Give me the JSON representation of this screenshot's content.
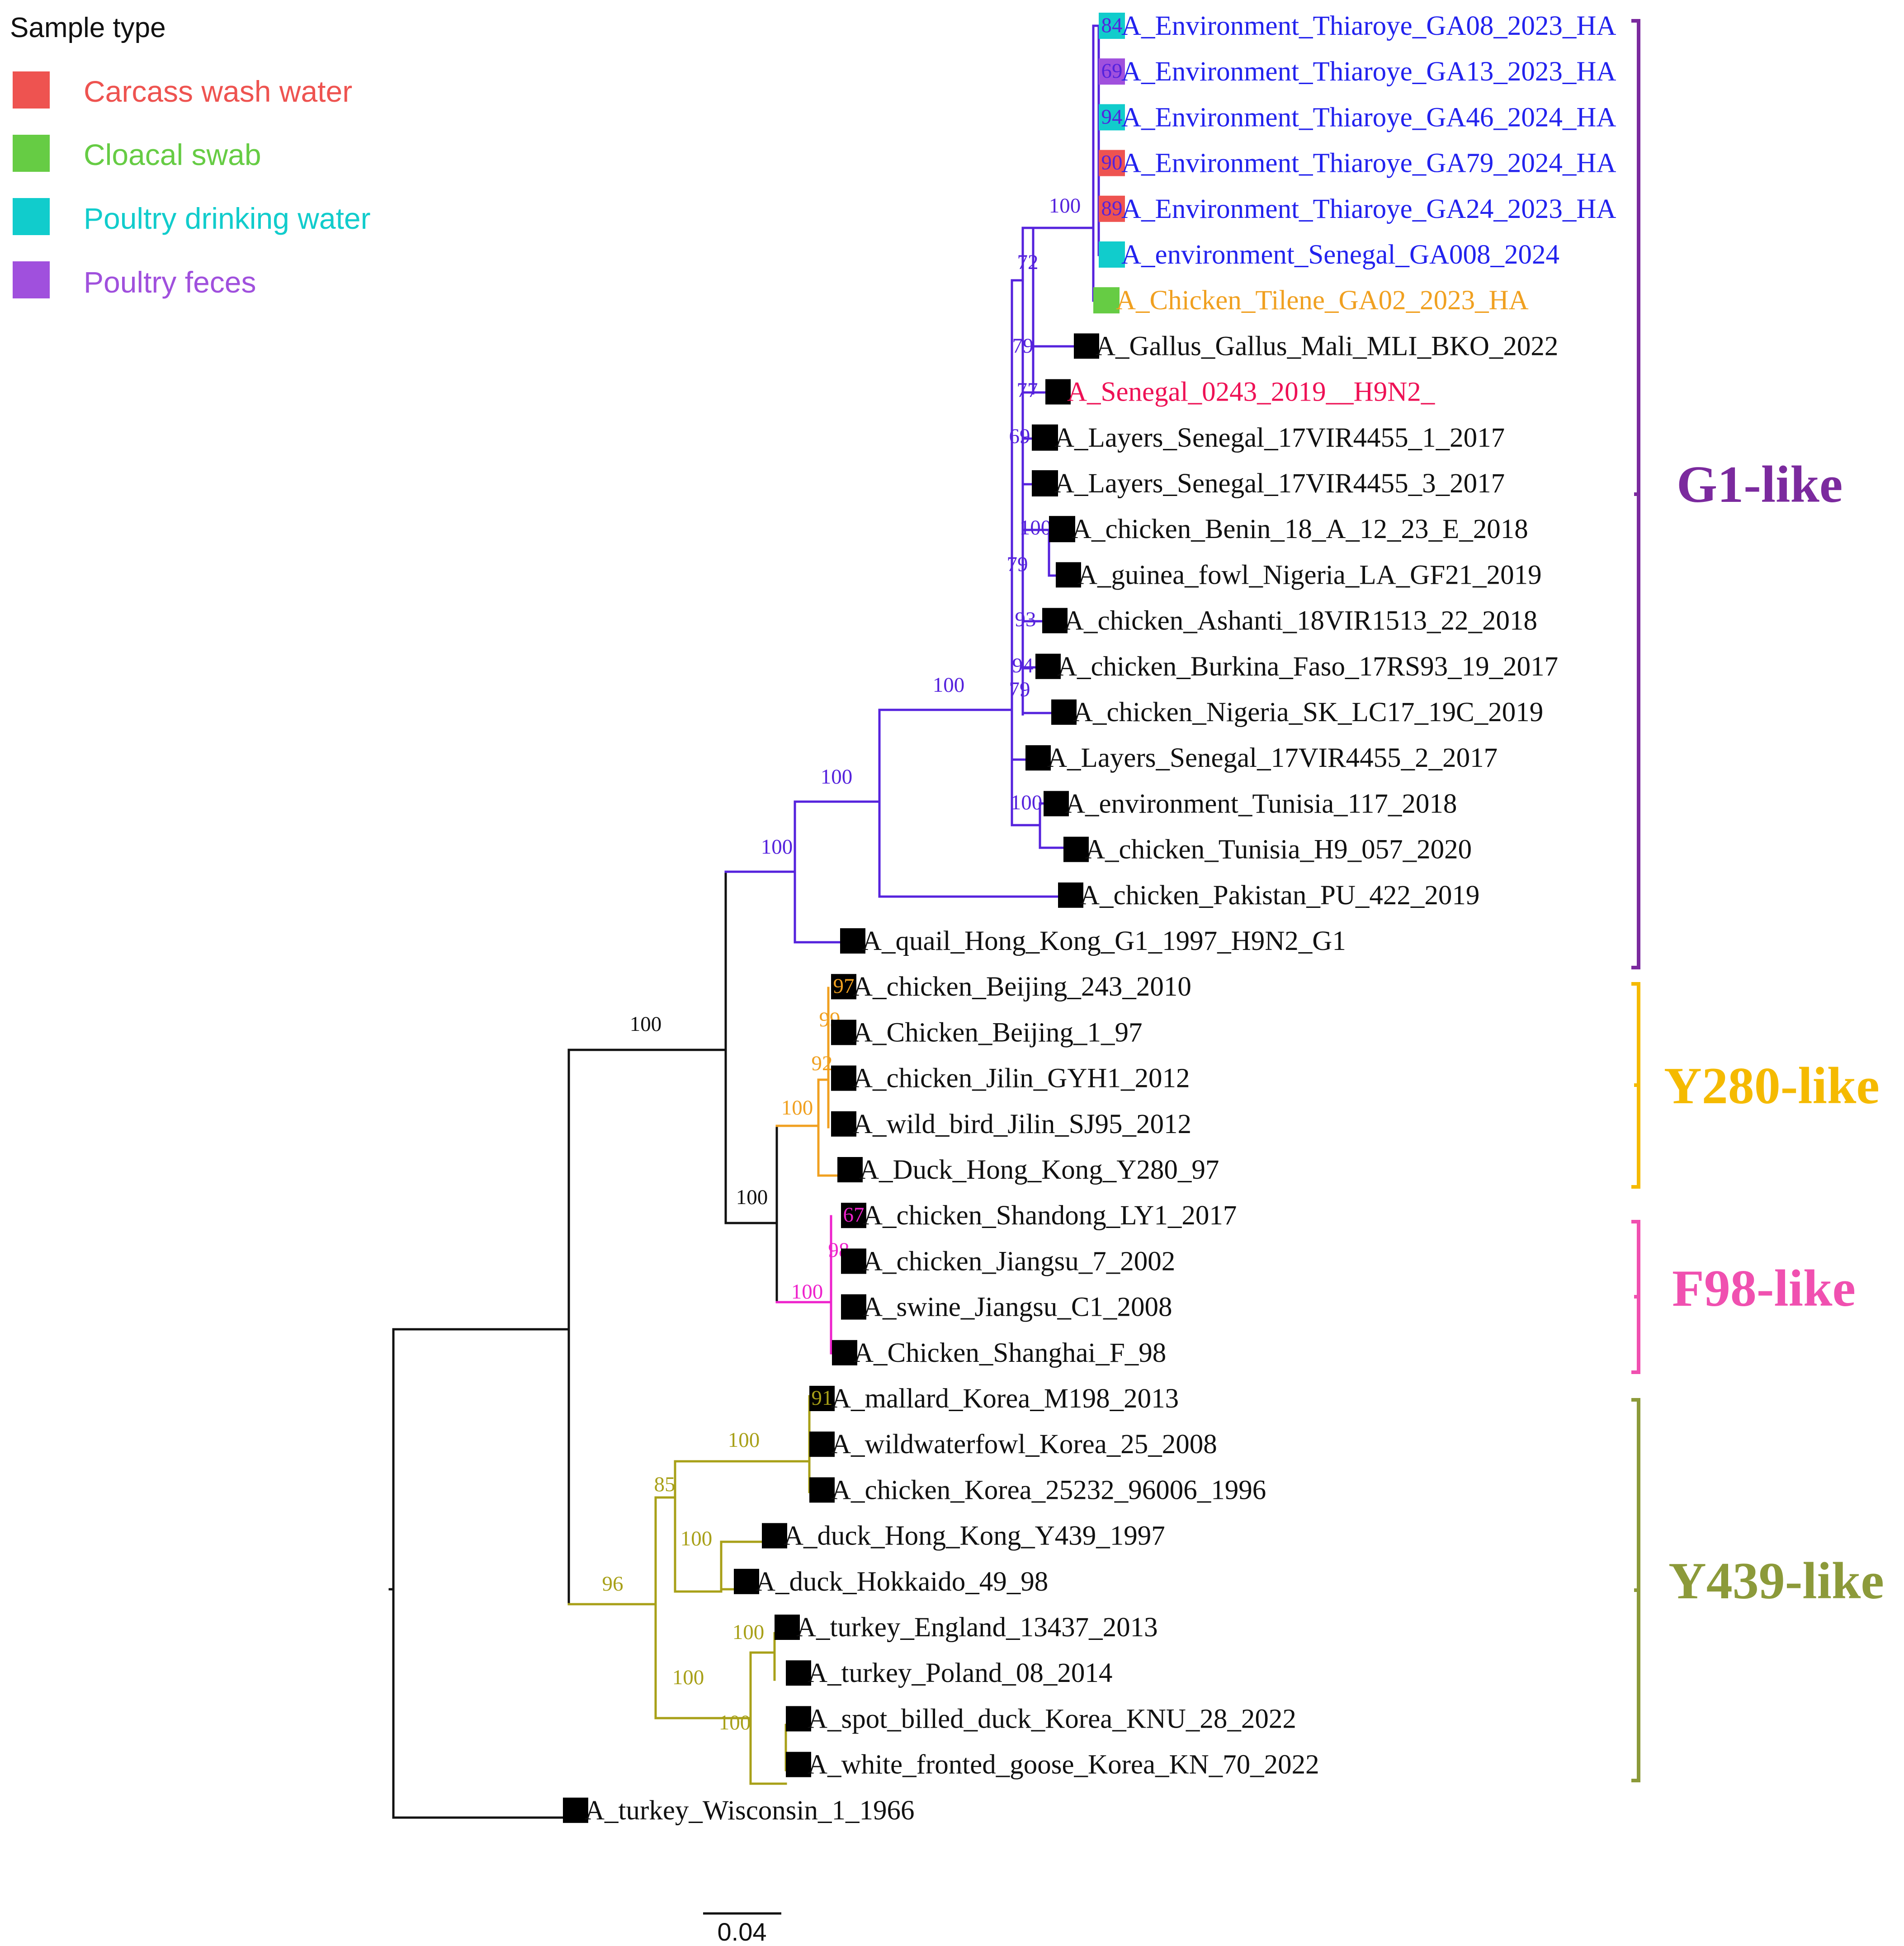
{
  "legend": {
    "title": "Sample type",
    "items": [
      {
        "label": "Carcass wash water",
        "color": "#EE5350"
      },
      {
        "label": "Cloacal swab",
        "color": "#66CC44"
      },
      {
        "label": "Poultry drinking water",
        "color": "#11CCCC"
      },
      {
        "label": "Poultry feces",
        "color": "#A050DD"
      }
    ]
  },
  "colors": {
    "root": "#111111",
    "g1": "#5522DD",
    "y280": "#F0A020",
    "f98": "#EE22CC",
    "y439": "#A8A018",
    "tip_blue": "#2222EE",
    "tip_orange": "#F0A020",
    "tip_red": "#EE1155",
    "tip_black": "#111111",
    "marker": "#000000"
  },
  "taxa": [
    {
      "label": "A_Environment_Thiaroye_GA08_2023_HA",
      "color": "tip_blue",
      "marker": "cyan",
      "support": "84",
      "support_color": "g1"
    },
    {
      "label": "A_Environment_Thiaroye_GA13_2023_HA",
      "color": "tip_blue",
      "marker": "purple",
      "support": "69",
      "support_color": "g1"
    },
    {
      "label": "A_Environment_Thiaroye_GA46_2024_HA",
      "color": "tip_blue",
      "marker": "cyan",
      "support": "94",
      "support_color": "g1"
    },
    {
      "label": "A_Environment_Thiaroye_GA79_2024_HA",
      "color": "tip_blue",
      "marker": "red",
      "support": "90",
      "support_color": "g1"
    },
    {
      "label": "A_Environment_Thiaroye_GA24_2023_HA",
      "color": "tip_blue",
      "marker": "red",
      "support": "89",
      "support_color": "g1"
    },
    {
      "label": "A_environment_Senegal_GA008_2024",
      "color": "tip_blue",
      "marker": "cyan",
      "support": "",
      "support_color": "g1"
    },
    {
      "label": "A_Chicken_Tilene_GA02_2023_HA",
      "color": "tip_orange",
      "marker": "green",
      "support": "",
      "support_color": "g1"
    },
    {
      "label": "A_Gallus_Gallus_Mali_MLI_BKO_2022",
      "color": "tip_black",
      "marker": "black",
      "support": "",
      "support_color": "g1"
    },
    {
      "label": "A_Senegal_0243_2019__H9N2_",
      "color": "tip_red",
      "marker": "black",
      "support": "",
      "support_color": "g1"
    },
    {
      "label": "A_Layers_Senegal_17VIR4455_1_2017",
      "color": "tip_black",
      "marker": "black",
      "support": "",
      "support_color": "g1"
    },
    {
      "label": "A_Layers_Senegal_17VIR4455_3_2017",
      "color": "tip_black",
      "marker": "black",
      "support": "",
      "support_color": "g1"
    },
    {
      "label": "A_chicken_Benin_18_A_12_23_E_2018",
      "color": "tip_black",
      "marker": "black",
      "support": "",
      "support_color": "g1"
    },
    {
      "label": "A_guinea_fowl_Nigeria_LA_GF21_2019",
      "color": "tip_black",
      "marker": "black",
      "support": "",
      "support_color": "g1"
    },
    {
      "label": "A_chicken_Ashanti_18VIR1513_22_2018",
      "color": "tip_black",
      "marker": "black",
      "support": "",
      "support_color": "g1"
    },
    {
      "label": "A_chicken_Burkina_Faso_17RS93_19_2017",
      "color": "tip_black",
      "marker": "black",
      "support": "",
      "support_color": "g1"
    },
    {
      "label": "A_chicken_Nigeria_SK_LC17_19C_2019",
      "color": "tip_black",
      "marker": "black",
      "support": "",
      "support_color": "g1"
    },
    {
      "label": "A_Layers_Senegal_17VIR4455_2_2017",
      "color": "tip_black",
      "marker": "black",
      "support": "",
      "support_color": "g1"
    },
    {
      "label": "A_environment_Tunisia_117_2018",
      "color": "tip_black",
      "marker": "black",
      "support": "",
      "support_color": "g1"
    },
    {
      "label": "A_chicken_Tunisia_H9_057_2020",
      "color": "tip_black",
      "marker": "black",
      "support": "",
      "support_color": "g1"
    },
    {
      "label": "A_chicken_Pakistan_PU_422_2019",
      "color": "tip_black",
      "marker": "black",
      "support": "",
      "support_color": "g1"
    },
    {
      "label": "A_quail_Hong_Kong_G1_1997_H9N2_G1",
      "color": "tip_black",
      "marker": "black",
      "support": "",
      "support_color": "g1"
    },
    {
      "label": "A_chicken_Beijing_243_2010",
      "color": "tip_black",
      "marker": "black",
      "support": "97",
      "support_color": "y280"
    },
    {
      "label": "A_Chicken_Beijing_1_97",
      "color": "tip_black",
      "marker": "black",
      "support": "",
      "support_color": "y280"
    },
    {
      "label": "A_chicken_Jilin_GYH1_2012",
      "color": "tip_black",
      "marker": "black",
      "support": "",
      "support_color": "y280"
    },
    {
      "label": "A_wild_bird_Jilin_SJ95_2012",
      "color": "tip_black",
      "marker": "black",
      "support": "",
      "support_color": "y280"
    },
    {
      "label": "A_Duck_Hong_Kong_Y280_97",
      "color": "tip_black",
      "marker": "black",
      "support": "",
      "support_color": "y280"
    },
    {
      "label": "A_chicken_Shandong_LY1_2017",
      "color": "tip_black",
      "marker": "black",
      "support": "67",
      "support_color": "f98"
    },
    {
      "label": "A_chicken_Jiangsu_7_2002",
      "color": "tip_black",
      "marker": "black",
      "support": "",
      "support_color": "f98"
    },
    {
      "label": "A_swine_Jiangsu_C1_2008",
      "color": "tip_black",
      "marker": "black",
      "support": "",
      "support_color": "f98"
    },
    {
      "label": "A_Chicken_Shanghai_F_98",
      "color": "tip_black",
      "marker": "black",
      "support": "",
      "support_color": "f98"
    },
    {
      "label": "A_mallard_Korea_M198_2013",
      "color": "tip_black",
      "marker": "black",
      "support": "91",
      "support_color": "y439"
    },
    {
      "label": "A_wildwaterfowl_Korea_25_2008",
      "color": "tip_black",
      "marker": "black",
      "support": "",
      "support_color": "y439"
    },
    {
      "label": "A_chicken_Korea_25232_96006_1996",
      "color": "tip_black",
      "marker": "black",
      "support": "",
      "support_color": "y439"
    },
    {
      "label": "A_duck_Hong_Kong_Y439_1997",
      "color": "tip_black",
      "marker": "black",
      "support": "",
      "support_color": "y439"
    },
    {
      "label": "A_duck_Hokkaido_49_98",
      "color": "tip_black",
      "marker": "black",
      "support": "",
      "support_color": "y439"
    },
    {
      "label": "A_turkey_England_13437_2013",
      "color": "tip_black",
      "marker": "black",
      "support": "",
      "support_color": "y439"
    },
    {
      "label": "A_turkey_Poland_08_2014",
      "color": "tip_black",
      "marker": "black",
      "support": "",
      "support_color": "y439"
    },
    {
      "label": "A_spot_billed_duck_Korea_KNU_28_2022",
      "color": "tip_black",
      "marker": "black",
      "support": "",
      "support_color": "y439"
    },
    {
      "label": "A_white_fronted_goose_Korea_KN_70_2022",
      "color": "tip_black",
      "marker": "black",
      "support": "",
      "support_color": "y439"
    },
    {
      "label": "A_turkey_Wisconsin_1_1966",
      "color": "tip_black",
      "marker": "black",
      "support": "",
      "support_color": "root"
    }
  ],
  "node_supports": {
    "root_top": "100",
    "root_main": "100",
    "g1_outer": "100",
    "g1_inner": "100",
    "g1_core": "100",
    "g1_senegal": "100",
    "g1_n72": "72",
    "g1_n79a": "79",
    "g1_n79b": "79",
    "g1_n77": "77",
    "g1_n69": "69",
    "g1_n100benin": "100",
    "g1_n93": "93",
    "g1_n94": "94",
    "g1_n79c": "79",
    "g1_n100tun": "100",
    "y280_99": "99",
    "y280_92": "92",
    "y280_100": "100",
    "f98_98": "98",
    "f98_100": "100",
    "y439_96": "96",
    "y439_85": "85",
    "y439_100a": "100",
    "y439_100b": "100",
    "y439_100c": "100",
    "y439_100d": "100",
    "y439_100e": "100"
  },
  "clades": [
    {
      "label": "G1-like",
      "color": "#7B2A9E"
    },
    {
      "label": "Y280-like",
      "color": "#F5BA00"
    },
    {
      "label": "F98-like",
      "color": "#F050B0"
    },
    {
      "label": "Y439-like",
      "color": "#8C9A3A"
    }
  ],
  "scale": {
    "label": "0.04"
  }
}
